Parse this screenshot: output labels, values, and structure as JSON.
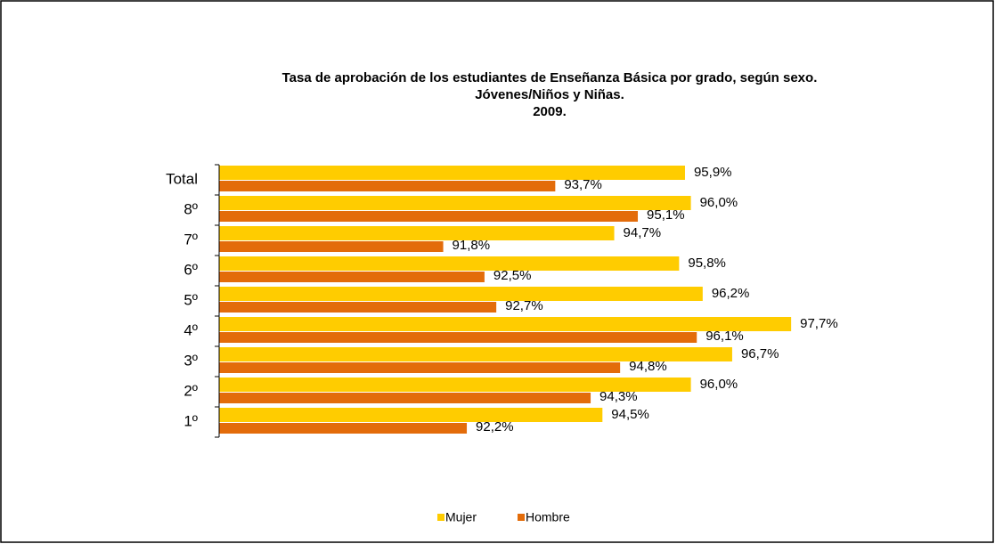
{
  "chart_data": {
    "type": "hbar",
    "title": "Tasa de aprobación de los estudiantes de Enseñanza Básica por grado, según sexo.",
    "subtitle": [
      "Jóvenes/Niños y Niñas.",
      "2009."
    ],
    "categories": [
      "Total",
      "8º",
      "7º",
      "6º",
      "5º",
      "4º",
      "3º",
      "2º",
      "1º"
    ],
    "series": [
      {
        "name": "Mujer",
        "color": "#FFCC00",
        "values": [
          95.9,
          96.0,
          94.7,
          95.8,
          96.2,
          97.7,
          96.7,
          96.0,
          94.5
        ],
        "value_labels": [
          "95,9%",
          "96,0%",
          "94,7%",
          "95,8%",
          "96,2%",
          "97,7%",
          "96,7%",
          "96,0%",
          "94,5%"
        ]
      },
      {
        "name": "Hombre",
        "color": "#E36C0A",
        "values": [
          93.7,
          95.1,
          91.8,
          92.5,
          92.7,
          96.1,
          94.8,
          94.3,
          92.2
        ],
        "value_labels": [
          "93,7%",
          "95,1%",
          "91,8%",
          "92,5%",
          "92,7%",
          "96,1%",
          "94,8%",
          "94,3%",
          "92,2%"
        ]
      }
    ],
    "xlim": [
      88,
      98
    ],
    "legend": "bottom"
  }
}
